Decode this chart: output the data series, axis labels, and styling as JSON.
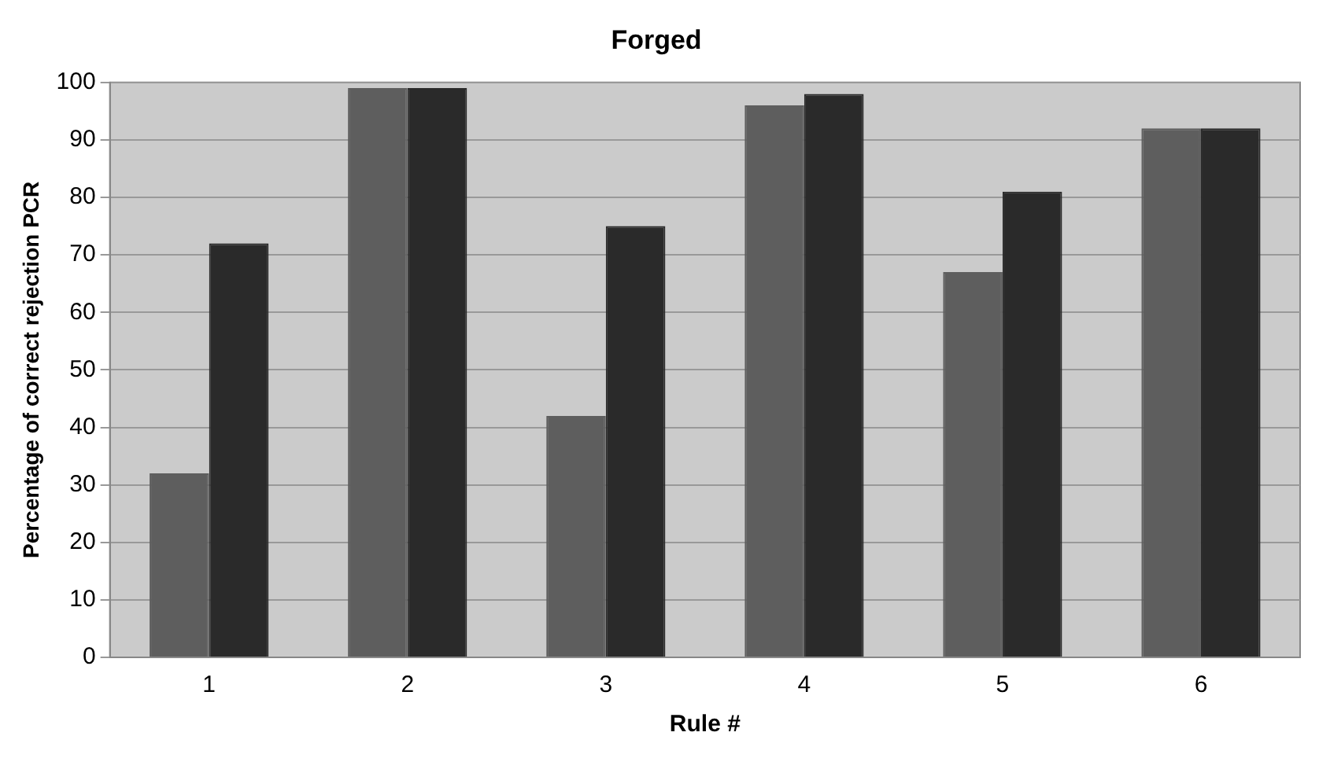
{
  "chart_data": {
    "type": "bar",
    "title": "Forged",
    "xlabel": "Rule #",
    "ylabel": "Percentage of correct rejection PCR",
    "categories": [
      "1",
      "2",
      "3",
      "4",
      "5",
      "6"
    ],
    "series": [
      {
        "color": "#5e5e5e",
        "values": [
          32,
          99,
          42,
          96,
          67,
          92
        ]
      },
      {
        "color": "#2a2a2a",
        "values": [
          72,
          99,
          75,
          98,
          81,
          92
        ]
      }
    ],
    "ylim": [
      0,
      100
    ],
    "yticks": [
      0,
      10,
      20,
      30,
      40,
      50,
      60,
      70,
      80,
      90,
      100
    ],
    "grid": "y",
    "legend": false
  }
}
